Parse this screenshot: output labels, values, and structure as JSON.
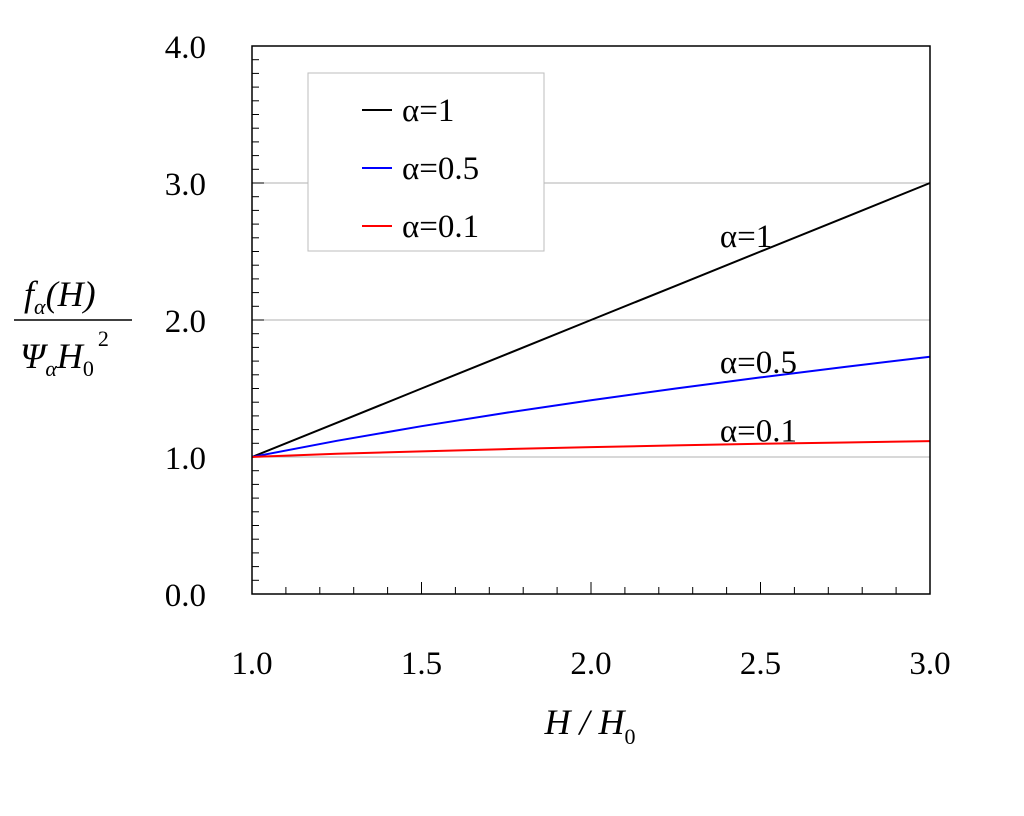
{
  "chart_data": {
    "type": "line",
    "xlabel": {
      "main": "H",
      "sep": " / ",
      "denom": "H",
      "denom_sub": "0"
    },
    "ylabel": {
      "num_f": "f",
      "num_sub": "α",
      "num_arg": "(H)",
      "den_psi": "Ψ",
      "den_sub": "α",
      "den_h": "H",
      "den_h_sub": "0",
      "den_sup": "2"
    },
    "xlim": [
      1.0,
      3.0
    ],
    "ylim": [
      0.0,
      4.0
    ],
    "xticks": [
      1.0,
      1.5,
      2.0,
      2.5,
      3.0
    ],
    "xtick_labels": [
      "1.0",
      "1.5",
      "2.0",
      "2.5",
      "3.0"
    ],
    "yticks": [
      0.0,
      1.0,
      2.0,
      3.0,
      4.0
    ],
    "ytick_labels": [
      "0.0",
      "1.0",
      "2.0",
      "3.0",
      "4.0"
    ],
    "grid_y": [
      1.0,
      2.0,
      3.0
    ],
    "legend_position": "top-left",
    "series": [
      {
        "name": "α=1",
        "color": "#000000",
        "x": [
          1.0,
          1.25,
          1.5,
          1.75,
          2.0,
          2.25,
          2.5,
          2.75,
          3.0
        ],
        "y": [
          1.0,
          1.25,
          1.5,
          1.75,
          2.0,
          2.25,
          2.5,
          2.75,
          3.0
        ],
        "label": {
          "text": "α=1",
          "x": 2.38,
          "y": 2.62
        }
      },
      {
        "name": "α=0.5",
        "color": "#0000ff",
        "x": [
          1.0,
          1.25,
          1.5,
          1.75,
          2.0,
          2.25,
          2.5,
          2.75,
          3.0
        ],
        "y": [
          1.0,
          1.118,
          1.225,
          1.323,
          1.414,
          1.5,
          1.581,
          1.658,
          1.732
        ],
        "label": {
          "text": "α=0.5",
          "x": 2.38,
          "y": 1.7
        }
      },
      {
        "name": "α=0.1",
        "color": "#ff0000",
        "x": [
          1.0,
          1.25,
          1.5,
          1.75,
          2.0,
          2.25,
          2.5,
          2.75,
          3.0
        ],
        "y": [
          1.0,
          1.023,
          1.041,
          1.058,
          1.072,
          1.085,
          1.096,
          1.106,
          1.116
        ],
        "label": {
          "text": "α=0.1",
          "x": 2.38,
          "y": 1.2
        }
      }
    ]
  }
}
